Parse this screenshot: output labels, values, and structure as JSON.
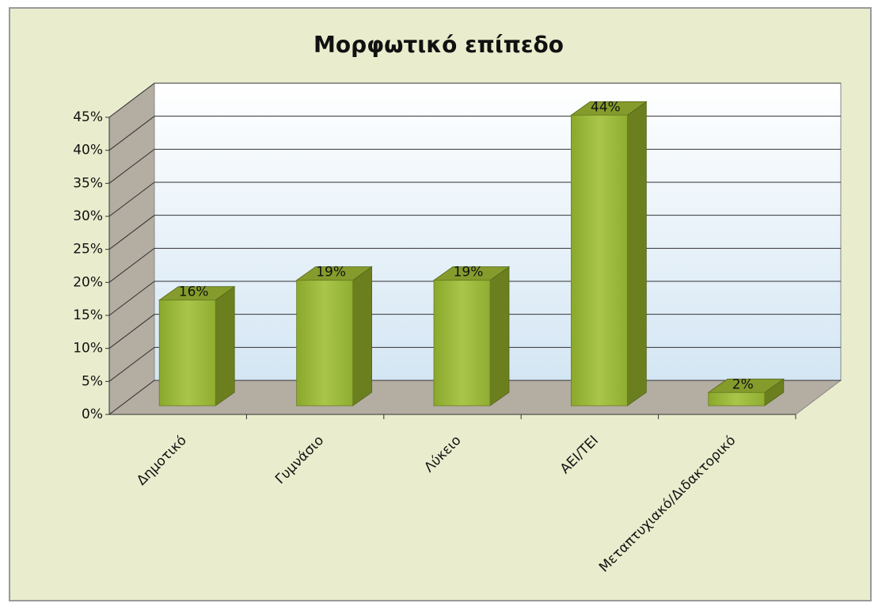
{
  "chart_data": {
    "type": "bar3d",
    "title": "Μορφωτικό επίπεδο",
    "categories": [
      "Δημοτικό",
      "Γυμνάσιο",
      "Λύκειο",
      "ΑΕΙ/ΤΕΙ",
      "Μεταπτυχιακό/Διδακτορικό"
    ],
    "values": [
      16,
      19,
      19,
      44,
      2
    ],
    "value_labels": [
      "16%",
      "19%",
      "19%",
      "44%",
      "2%"
    ],
    "color": "#9cba3a",
    "ylim": [
      0,
      45
    ],
    "yticks": [
      {
        "value": 0,
        "label": "0%"
      },
      {
        "value": 5,
        "label": "5%"
      },
      {
        "value": 10,
        "label": "10%"
      },
      {
        "value": 15,
        "label": "15%"
      },
      {
        "value": 20,
        "label": "20%"
      },
      {
        "value": 25,
        "label": "25%"
      },
      {
        "value": 30,
        "label": "30%"
      },
      {
        "value": 35,
        "label": "35%"
      },
      {
        "value": 40,
        "label": "40%"
      },
      {
        "value": 45,
        "label": "45%"
      }
    ],
    "grid": true
  }
}
